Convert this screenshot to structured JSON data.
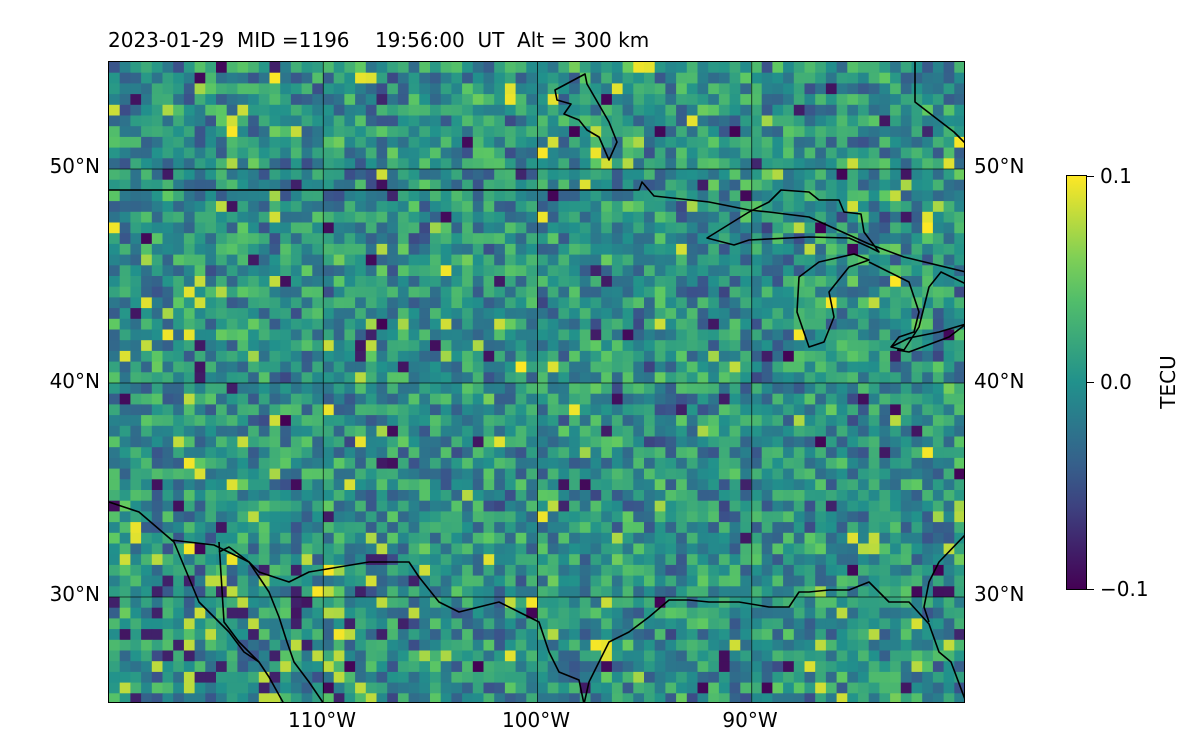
{
  "title": "2023-01-29  MID =1196    19:56:00  UT  Alt = 300 km",
  "lat_labels_left": [
    "50°N",
    "40°N",
    "30°N"
  ],
  "lat_labels_right": [
    "50°N",
    "40°N",
    "30°N"
  ],
  "lon_labels": [
    "110°W",
    "100°W",
    "90°W"
  ],
  "colorbar": {
    "label": "TECU",
    "ticks": [
      "0.1",
      "0.0",
      "−0.1"
    ],
    "colormap": "viridis",
    "vmin": -0.1,
    "vmax": 0.1
  },
  "map": {
    "lon_range": [
      -120,
      -80
    ],
    "lat_range": [
      25,
      55
    ],
    "gridlines": true,
    "coastlines": true
  },
  "colors": {
    "field_base": "#2a7d8a",
    "outline": "#000000"
  }
}
